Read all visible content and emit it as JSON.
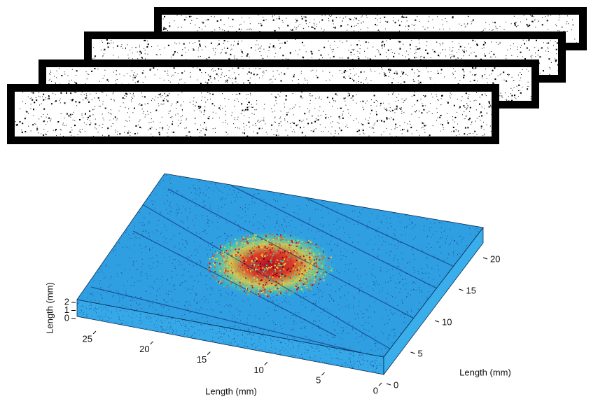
{
  "axes": {
    "z": {
      "label": "Length (mm)",
      "ticks": [
        2,
        1,
        0
      ]
    },
    "x": {
      "label": "Length (mm)",
      "ticks": [
        25,
        20,
        15,
        10,
        5,
        0
      ]
    },
    "y": {
      "label": "Length (mm)",
      "ticks": [
        0,
        5,
        10,
        15,
        20
      ]
    }
  }
}
